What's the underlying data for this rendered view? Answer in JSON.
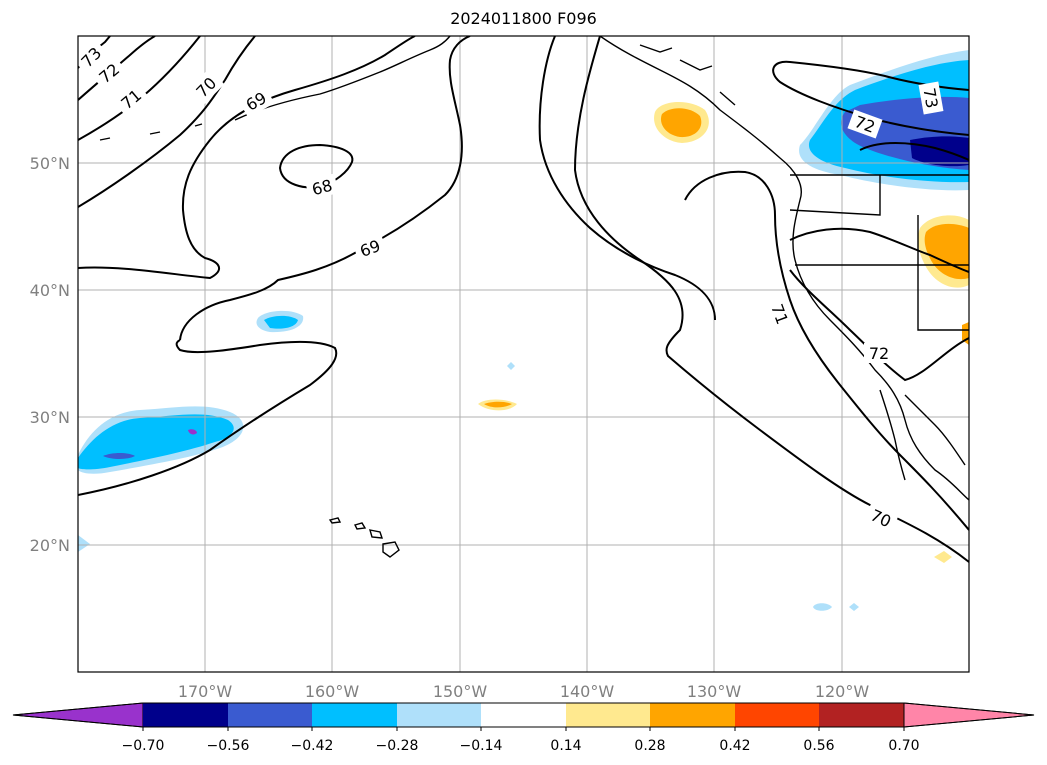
{
  "title": "2024011800 F096",
  "map": {
    "lon_labels": [
      "170°W",
      "160°W",
      "150°W",
      "140°W",
      "130°W",
      "120°W"
    ],
    "lat_labels": [
      "50°N",
      "40°N",
      "30°N",
      "20°N"
    ],
    "contour_labels": [
      "73",
      "72",
      "71",
      "70",
      "69",
      "68",
      "69",
      "71",
      "72",
      "70",
      "73",
      "72"
    ]
  },
  "colorbar": {
    "ticks": [
      "−0.70",
      "−0.56",
      "−0.42",
      "−0.28",
      "−0.14",
      "0.14",
      "0.28",
      "0.42",
      "0.56",
      "0.70"
    ],
    "colors": [
      "#9932cc",
      "#00008b",
      "#3a5bd0",
      "#00bfff",
      "#afe0fa",
      "#ffffff",
      "#ffe98f",
      "#ffa500",
      "#ff4500",
      "#b22222",
      "#ff85a8"
    ]
  }
}
